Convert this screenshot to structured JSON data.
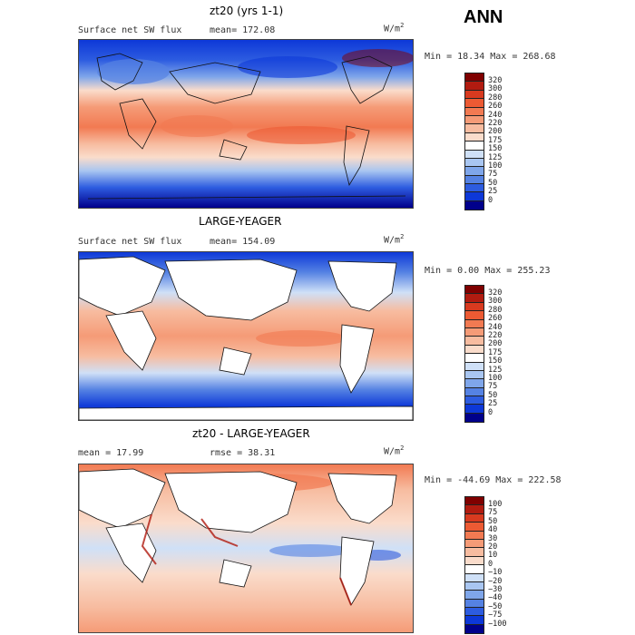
{
  "season": "ANN",
  "panels": [
    {
      "title": "zt20 (yrs 1-1)",
      "variable": "Surface net SW flux",
      "stat_left": "mean= 172.08",
      "stat_right": "",
      "units": "W/m",
      "units_sup": "2",
      "minmax": "Min =  18.34 Max = 268.68"
    },
    {
      "title": "LARGE-YEAGER",
      "variable": "Surface net SW flux",
      "stat_left": "mean= 154.09",
      "stat_right": "",
      "units": "W/m",
      "units_sup": "2",
      "minmax": "Min =   0.00 Max = 255.23"
    },
    {
      "title": "zt20 - LARGE-YEAGER",
      "variable": "mean =  17.99",
      "stat_left": "",
      "stat_right": "rmse =  38.31",
      "units": "W/m",
      "units_sup": "2",
      "minmax": "Min = -44.69 Max = 222.58"
    }
  ],
  "chart_data": [
    {
      "type": "heatmap",
      "title": "zt20 (yrs 1-1)",
      "colorbar": {
        "levels": [
          320,
          300,
          280,
          260,
          240,
          220,
          200,
          175,
          150,
          125,
          100,
          75,
          50,
          25,
          0
        ],
        "colors": [
          "#7f0000",
          "#b11b10",
          "#d83a1f",
          "#ec5a33",
          "#f27a52",
          "#f59b77",
          "#f7bca0",
          "#fadccb",
          "#ffffff",
          "#cfe0f7",
          "#a9c6f1",
          "#7fa6ea",
          "#5582e3",
          "#2d5ce0",
          "#0d38d8",
          "#00008b"
        ]
      },
      "mean": 172.08,
      "min": 18.34,
      "max": 268.68
    },
    {
      "type": "heatmap",
      "title": "LARGE-YEAGER",
      "colorbar": {
        "levels": [
          320,
          300,
          280,
          260,
          240,
          220,
          200,
          175,
          150,
          125,
          100,
          75,
          50,
          25,
          0
        ],
        "colors": [
          "#7f0000",
          "#b11b10",
          "#d83a1f",
          "#ec5a33",
          "#f27a52",
          "#f59b77",
          "#f7bca0",
          "#fadccb",
          "#ffffff",
          "#cfe0f7",
          "#a9c6f1",
          "#7fa6ea",
          "#5582e3",
          "#2d5ce0",
          "#0d38d8",
          "#00008b"
        ]
      },
      "mean": 154.09,
      "min": 0.0,
      "max": 255.23
    },
    {
      "type": "heatmap",
      "title": "zt20 - LARGE-YEAGER",
      "colorbar": {
        "levels": [
          100,
          75,
          50,
          40,
          30,
          20,
          10,
          0,
          -10,
          -20,
          -30,
          -40,
          -50,
          -75,
          -100
        ],
        "colors": [
          "#7f0000",
          "#b11b10",
          "#d83a1f",
          "#ec5a33",
          "#f27a52",
          "#f59b77",
          "#f7bca0",
          "#fadccb",
          "#ffffff",
          "#cfe0f7",
          "#a9c6f1",
          "#7fa6ea",
          "#5582e3",
          "#2d5ce0",
          "#0d38d8",
          "#00008b"
        ]
      },
      "mean": 17.99,
      "rmse": 38.31,
      "min": -44.69,
      "max": 222.58
    }
  ]
}
